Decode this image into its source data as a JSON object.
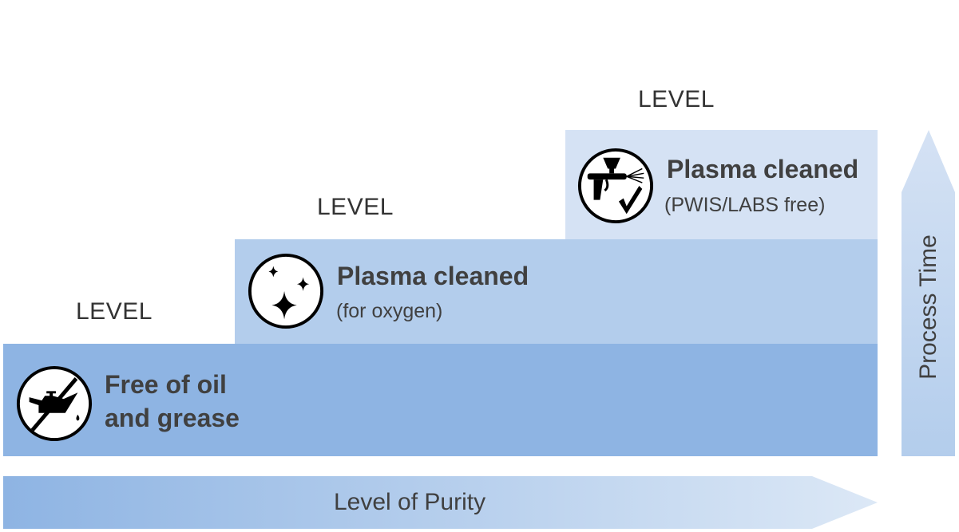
{
  "colors": {
    "level1": "#8eb4e3",
    "level2": "#b3cdec",
    "level3": "#d5e2f4",
    "text": "#404040"
  },
  "levels": [
    {
      "label": "LEVEL",
      "title": "Free of oil and grease",
      "title_lines": [
        "Free of oil",
        "and grease"
      ],
      "subtitle": "",
      "icon": "no-oil-can-icon"
    },
    {
      "label": "LEVEL",
      "title": "Plasma cleaned",
      "subtitle": "(for oxygen)",
      "icon": "sparkles-icon"
    },
    {
      "label": "LEVEL",
      "title": "Plasma cleaned",
      "subtitle": "(PWIS/LABS free)",
      "icon": "spray-gun-check-icon"
    }
  ],
  "axes": {
    "x_label": "Level of Purity",
    "y_label": "Process Time"
  }
}
